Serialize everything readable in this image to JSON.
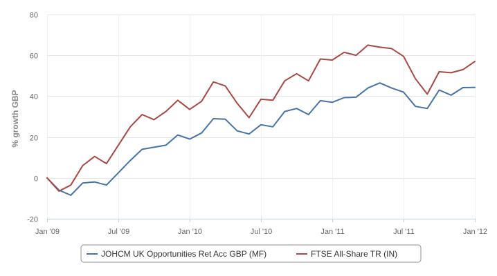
{
  "chart_data": {
    "type": "line",
    "title": "",
    "xlabel": "",
    "ylabel": "% growth GBP",
    "ylim": [
      -20,
      80
    ],
    "yticks": [
      -20,
      0,
      20,
      40,
      60,
      80
    ],
    "xlim": [
      "2009-01",
      "2012-01"
    ],
    "xticks": [
      {
        "date": "2009-01",
        "label": "Jan '09"
      },
      {
        "date": "2009-07",
        "label": "Jul '09"
      },
      {
        "date": "2010-01",
        "label": "Jan '10"
      },
      {
        "date": "2010-07",
        "label": "Jul '10"
      },
      {
        "date": "2011-01",
        "label": "Jan '11"
      },
      {
        "date": "2011-07",
        "label": "Jul '11"
      },
      {
        "date": "2012-01",
        "label": "Jan '12"
      }
    ],
    "grid": true,
    "legend": "bottom",
    "x": [
      "2009-01",
      "2009-02",
      "2009-03",
      "2009-04",
      "2009-05",
      "2009-06",
      "2009-07",
      "2009-08",
      "2009-09",
      "2009-10",
      "2009-11",
      "2009-12",
      "2010-01",
      "2010-02",
      "2010-03",
      "2010-04",
      "2010-05",
      "2010-06",
      "2010-07",
      "2010-08",
      "2010-09",
      "2010-10",
      "2010-11",
      "2010-12",
      "2011-01",
      "2011-02",
      "2011-03",
      "2011-04",
      "2011-05",
      "2011-06",
      "2011-07",
      "2011-08",
      "2011-09",
      "2011-10",
      "2011-11",
      "2011-12",
      "2012-01"
    ],
    "series": [
      {
        "name": "JOHCM UK Opportunities Ret Acc GBP (MF)",
        "color": "#4572a7",
        "values": [
          0,
          -6,
          -8.5,
          -2.5,
          -2,
          -3.5,
          2.5,
          8.5,
          14,
          15,
          16,
          21,
          19,
          22,
          29,
          28.7,
          23,
          21.5,
          26,
          25,
          32.5,
          34,
          31,
          37.8,
          37,
          39.3,
          39.5,
          44,
          46.5,
          44,
          42,
          35,
          34,
          43,
          40.5,
          44.2,
          44.3
        ]
      },
      {
        "name": "FTSE All-Share TR (IN)",
        "color": "#aa4643",
        "values": [
          0,
          -6.5,
          -3.5,
          6,
          10.5,
          7,
          16,
          25,
          31,
          28.5,
          32.5,
          38,
          33.5,
          37.5,
          47,
          45,
          36.5,
          29.5,
          38.5,
          38,
          47.5,
          51,
          47.5,
          58.2,
          57.7,
          61.5,
          60,
          65,
          64,
          63.3,
          59.5,
          48.5,
          41,
          52,
          51.5,
          53,
          57
        ]
      }
    ]
  }
}
